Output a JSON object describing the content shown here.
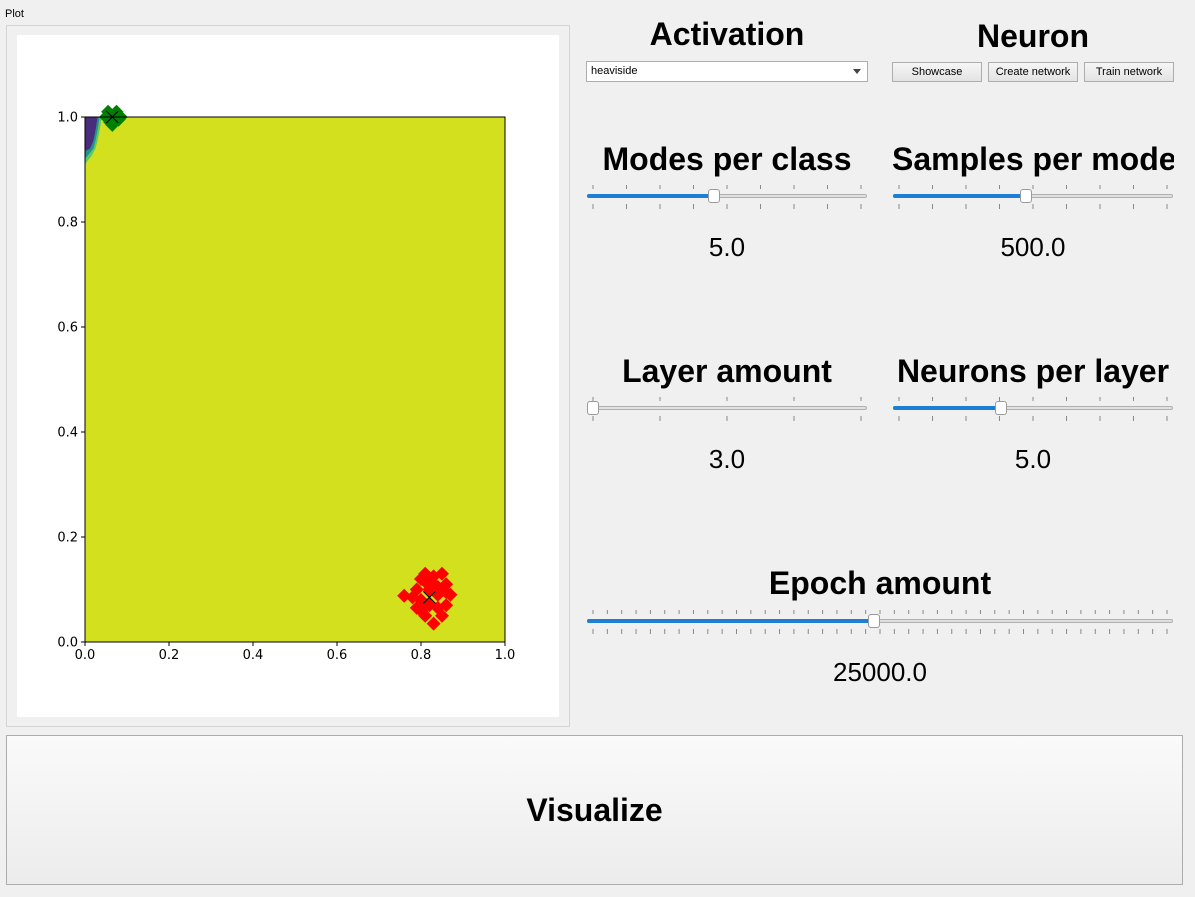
{
  "plot_group": {
    "title": "Plot"
  },
  "activation": {
    "heading": "Activation",
    "selected": "heaviside"
  },
  "neuron": {
    "heading": "Neuron",
    "buttons": [
      "Showcase",
      "Create network",
      "Train network"
    ]
  },
  "sliders": {
    "modes_per_class": {
      "heading": "Modes per class",
      "value": "5.0",
      "fraction": 0.45
    },
    "samples_per_mode": {
      "heading": "Samples per mode",
      "value": "500.0",
      "fraction": 0.475
    },
    "layer_amount": {
      "heading": "Layer amount",
      "value": "3.0",
      "fraction": 0.0
    },
    "neurons_per_layer": {
      "heading": "Neurons per layer",
      "value": "5.0",
      "fraction": 0.38
    },
    "epoch_amount": {
      "heading": "Epoch amount",
      "value": "25000.0",
      "fraction": 0.49
    }
  },
  "visualize_button": {
    "label": "Visualize"
  },
  "chart_data": {
    "type": "scatter",
    "xlim": [
      0,
      1
    ],
    "ylim": [
      0,
      1
    ],
    "x_ticks": [
      "0.0",
      "0.2",
      "0.4",
      "0.6",
      "0.8",
      "1.0"
    ],
    "y_ticks": [
      "0.0",
      "0.2",
      "0.4",
      "0.6",
      "0.8",
      "1.0"
    ],
    "background_color": "#d2e01e",
    "region_colors": [
      "#472d7b",
      "#21918c",
      "#5ec962"
    ],
    "series": [
      {
        "color": "#008000",
        "marker": "diamond",
        "center": [
          0.065,
          1.0
        ],
        "points": [
          [
            0.05,
            1.0
          ],
          [
            0.06,
            0.99
          ],
          [
            0.07,
            1.005
          ],
          [
            0.08,
            0.995
          ],
          [
            0.065,
            0.985
          ],
          [
            0.055,
            1.01
          ],
          [
            0.075,
            1.01
          ],
          [
            0.085,
            1.0
          ],
          [
            0.06,
            1.0
          ],
          [
            0.07,
            0.99
          ]
        ]
      },
      {
        "color": "#ff0000",
        "marker": "diamond",
        "center": [
          0.82,
          0.085
        ],
        "points": [
          [
            0.76,
            0.088
          ],
          [
            0.79,
            0.1
          ],
          [
            0.8,
            0.12
          ],
          [
            0.81,
            0.13
          ],
          [
            0.83,
            0.125
          ],
          [
            0.85,
            0.13
          ],
          [
            0.86,
            0.11
          ],
          [
            0.87,
            0.09
          ],
          [
            0.86,
            0.07
          ],
          [
            0.85,
            0.05
          ],
          [
            0.83,
            0.035
          ],
          [
            0.81,
            0.05
          ],
          [
            0.79,
            0.065
          ],
          [
            0.8,
            0.08
          ],
          [
            0.82,
            0.1
          ],
          [
            0.84,
            0.09
          ],
          [
            0.82,
            0.07
          ],
          [
            0.84,
            0.065
          ],
          [
            0.78,
            0.085
          ],
          [
            0.83,
            0.11
          ],
          [
            0.81,
            0.115
          ],
          [
            0.8,
            0.06
          ],
          [
            0.86,
            0.095
          ],
          [
            0.84,
            0.105
          ]
        ]
      }
    ]
  }
}
